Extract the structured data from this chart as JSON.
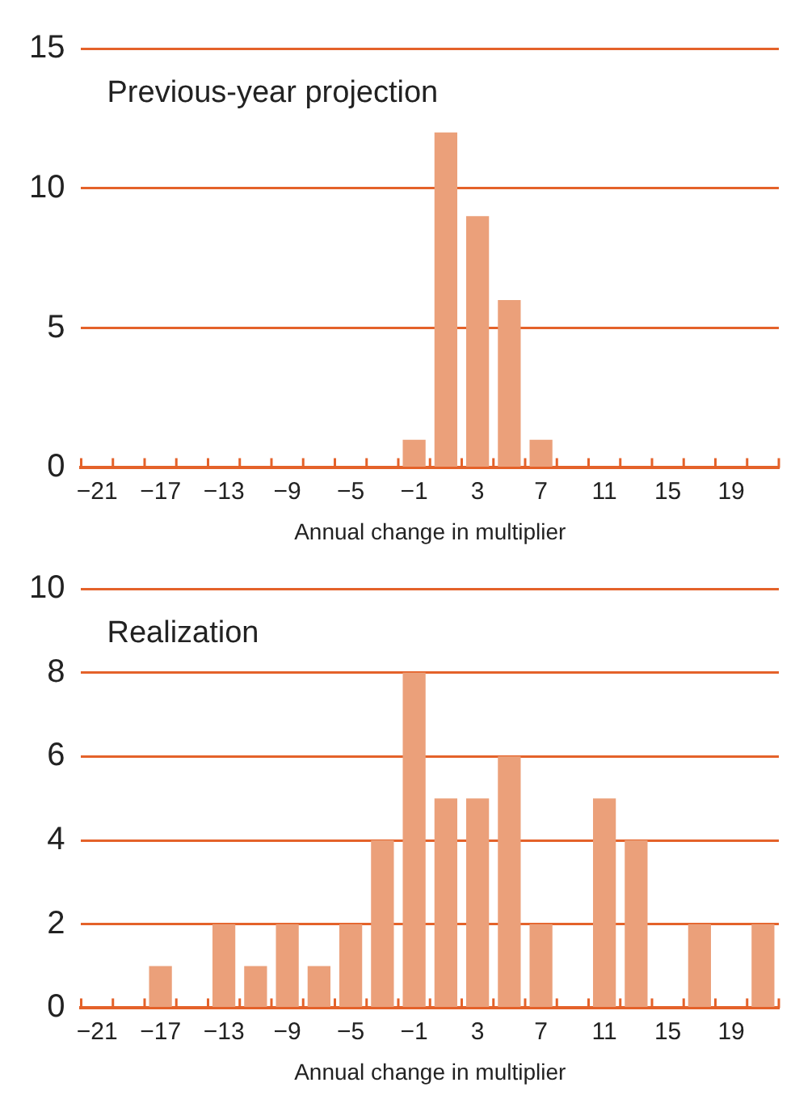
{
  "chart_data": [
    {
      "type": "histogram",
      "title": "Previous-year projection",
      "xlabel": "Annual change in multiplier",
      "bins": [
        -22,
        -20,
        -18,
        -16,
        -14,
        -12,
        -10,
        -8,
        -6,
        -4,
        -2,
        0,
        2,
        4,
        6,
        8,
        10,
        12,
        14,
        16,
        18,
        20,
        22
      ],
      "values": [
        0,
        0,
        0,
        0,
        0,
        0,
        0,
        0,
        0,
        0,
        1,
        12,
        9,
        6,
        1,
        0,
        0,
        0,
        0,
        0,
        0,
        0
      ],
      "color": "#eba07a",
      "xlim": [
        -22,
        22
      ],
      "xticks": [
        -21,
        -17,
        -13,
        -9,
        -5,
        -1,
        3,
        7,
        11,
        15,
        19
      ],
      "ylim": [
        0,
        15
      ],
      "yticks": [
        0,
        5,
        10,
        15
      ],
      "grid": "y"
    },
    {
      "type": "histogram",
      "title": "Realization",
      "xlabel": "Annual change in multiplier",
      "bins": [
        -22,
        -20,
        -18,
        -16,
        -14,
        -12,
        -10,
        -8,
        -6,
        -4,
        -2,
        0,
        2,
        4,
        6,
        8,
        10,
        12,
        14,
        16,
        18,
        20,
        22
      ],
      "values": [
        0,
        0,
        1,
        0,
        2,
        1,
        2,
        1,
        2,
        4,
        8,
        5,
        5,
        6,
        2,
        0,
        5,
        4,
        0,
        2,
        0,
        2
      ],
      "color": "#eba07a",
      "xlim": [
        -22,
        22
      ],
      "xticks": [
        -21,
        -17,
        -13,
        -9,
        -5,
        -1,
        3,
        7,
        11,
        15,
        19
      ],
      "ylim": [
        0,
        10
      ],
      "yticks": [
        0,
        2,
        4,
        6,
        8,
        10
      ],
      "grid": "y"
    }
  ]
}
